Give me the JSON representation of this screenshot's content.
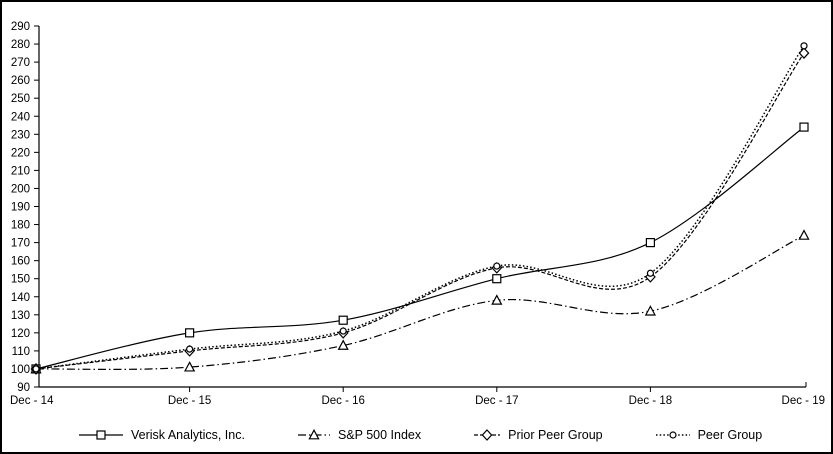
{
  "chart_data": {
    "type": "line",
    "title": "",
    "xlabel": "",
    "ylabel": "",
    "x_labels": [
      "Dec - 14",
      "Dec - 15",
      "Dec - 16",
      "Dec - 17",
      "Dec - 18",
      "Dec - 19"
    ],
    "ylim": [
      90,
      290
    ],
    "ytick_step": 10,
    "grid": false,
    "legend_position": "bottom",
    "background": "#ffffff",
    "line_color": "#000000",
    "series": [
      {
        "name": "Verisk Analytics, Inc.",
        "marker": "square",
        "line_style": "solid",
        "values": [
          100,
          120,
          127,
          150,
          170,
          234
        ]
      },
      {
        "name": "S&P 500 Index",
        "marker": "triangle",
        "line_style": "dash-dot",
        "values": [
          100,
          101,
          113,
          138,
          132,
          174
        ]
      },
      {
        "name": "Prior Peer Group",
        "marker": "diamond",
        "line_style": "dashed",
        "values": [
          100,
          110,
          120,
          156,
          151,
          275
        ]
      },
      {
        "name": "Peer Group",
        "marker": "circle",
        "line_style": "dotted",
        "values": [
          100,
          111,
          121,
          157,
          153,
          279
        ]
      }
    ]
  }
}
